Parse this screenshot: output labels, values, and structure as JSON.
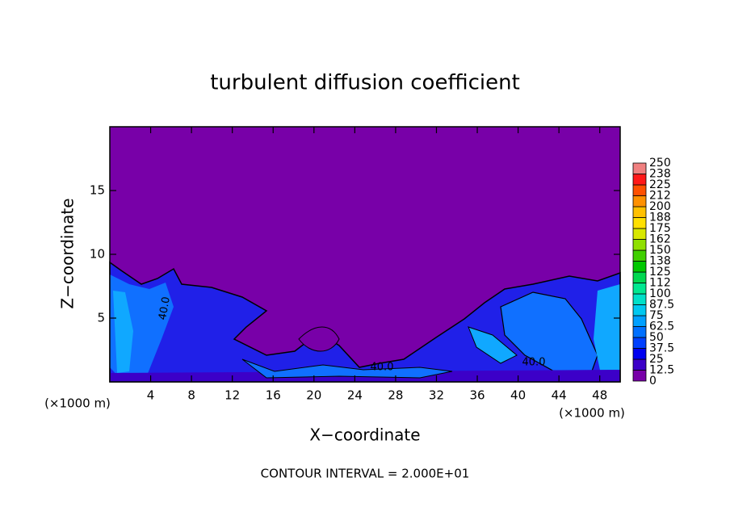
{
  "chart_data": {
    "type": "contour",
    "title": "turbulent diffusion coefficient",
    "xlabel": "X−coordinate",
    "ylabel": "Z−coordinate",
    "x_unit": "(×1000 m)",
    "y_unit": "(×1000 m)",
    "footer": "CONTOUR INTERVAL = 2.000E+01",
    "xlim": [
      0,
      50
    ],
    "xticks": [
      4,
      8,
      12,
      16,
      20,
      24,
      28,
      32,
      36,
      40,
      44,
      48
    ],
    "ylim": [
      0,
      20
    ],
    "yticks": [
      5,
      10,
      15
    ],
    "contour_labels": [
      "40.0",
      "40.0",
      "40.0"
    ],
    "colorbar_ticks": [
      0,
      12.5,
      25,
      37.5,
      50,
      62.5,
      75,
      87.5,
      100,
      112,
      125,
      138,
      150,
      162,
      175,
      188,
      200,
      212,
      225,
      238,
      250
    ],
    "colorbar_colors": [
      "#7800a8",
      "#3c00c8",
      "#0000f0",
      "#0040ff",
      "#0070ff",
      "#00a0ff",
      "#00c8f0",
      "#00e0c8",
      "#00e890",
      "#00d850",
      "#00c800",
      "#40d000",
      "#90e000",
      "#d8e800",
      "#ffe000",
      "#ffc000",
      "#ff9000",
      "#ff5000",
      "#ff1818",
      "#f08080"
    ]
  }
}
